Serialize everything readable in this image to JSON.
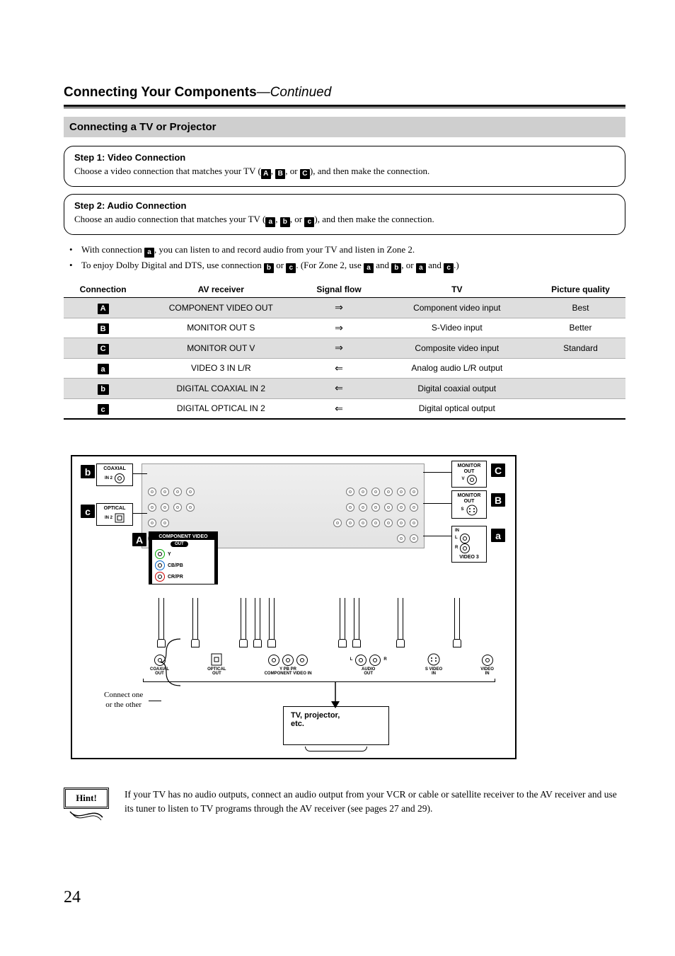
{
  "page": {
    "title_main": "Connecting Your Components",
    "title_cont": "—Continued",
    "number": "24"
  },
  "section": {
    "heading": "Connecting a TV or Projector"
  },
  "step1": {
    "heading": "Step 1: Video Connection",
    "text_pre": "Choose a video connection that matches your TV (",
    "chips": [
      "A",
      "B",
      "C"
    ],
    "sep": ", ",
    "sep_or": ", or ",
    "text_post": "), and then make the connection."
  },
  "step2": {
    "heading": "Step 2: Audio Connection",
    "text_pre": "Choose an audio connection that matches your TV (",
    "chips": [
      "a",
      "b",
      "c"
    ],
    "sep": ", ",
    "sep_or": ", or ",
    "text_post": "), and then make the connection."
  },
  "notes": {
    "n1_pre": "With connection ",
    "n1_chip": "a",
    "n1_post": ", you can listen to and record audio from your TV and listen in Zone 2.",
    "n2_pre": "To enjoy Dolby Digital and DTS, use connection ",
    "n2_chip1": "b",
    "n2_or": " or ",
    "n2_chip2": "c",
    "n2_mid": ". (For Zone 2, use ",
    "n2_chip3": "a",
    "n2_and": " and ",
    "n2_chip4": "b",
    "n2_or2": ", or ",
    "n2_chip5": "a",
    "n2_and2": " and ",
    "n2_chip6": "c",
    "n2_end": ".)"
  },
  "table": {
    "columns": [
      "Connection",
      "AV receiver",
      "Signal flow",
      "TV",
      "Picture quality"
    ],
    "col_widths": [
      "14%",
      "28%",
      "14%",
      "28%",
      "16%"
    ],
    "rows": [
      {
        "chip": "A",
        "av": "COMPONENT VIDEO OUT",
        "flow": "⇒",
        "tv": "Component video input",
        "pq": "Best",
        "shade": true
      },
      {
        "chip": "B",
        "av": "MONITOR OUT S",
        "flow": "⇒",
        "tv": "S-Video input",
        "pq": "Better",
        "shade": false
      },
      {
        "chip": "C",
        "av": "MONITOR OUT V",
        "flow": "⇒",
        "tv": "Composite video input",
        "pq": "Standard",
        "shade": true
      },
      {
        "chip": "a",
        "av": "VIDEO 3 IN L/R",
        "flow": "⇐",
        "tv": "Analog audio L/R output",
        "pq": "",
        "shade": false
      },
      {
        "chip": "b",
        "av": "DIGITAL COAXIAL IN 2",
        "flow": "⇐",
        "tv": "Digital coaxial output",
        "pq": "",
        "shade": true
      },
      {
        "chip": "c",
        "av": "DIGITAL OPTICAL IN 2",
        "flow": "⇐",
        "tv": "Digital optical output",
        "pq": "",
        "shade": false
      }
    ]
  },
  "diagram": {
    "chips": {
      "A": "A",
      "B": "B",
      "C": "C",
      "a": "a",
      "b": "b",
      "c": "c"
    },
    "callouts": {
      "coaxial": {
        "title": "COAXIAL",
        "sub": "IN 2"
      },
      "optical": {
        "title": "OPTICAL",
        "sub": "IN 2"
      },
      "component_out": {
        "title": "COMPONENT VIDEO",
        "sub": "OUT",
        "y": "Y",
        "pb": "CB/PB",
        "pr": "CR/PR"
      },
      "monitor_v": {
        "title": "MONITOR\nOUT",
        "sub": "V"
      },
      "monitor_s": {
        "title": "MONITOR\nOUT",
        "sub": "S"
      },
      "video3": {
        "title": "VIDEO 3",
        "in": "IN",
        "l": "L",
        "r": "R"
      }
    },
    "tv_ports": [
      {
        "label": "COAXIAL\nOUT"
      },
      {
        "label": "OPTICAL\nOUT"
      },
      {
        "label": "Y    PB    PR\nCOMPONENT VIDEO IN",
        "triple": true
      },
      {
        "label": "AUDIO\nOUT",
        "double": true,
        "l": "L",
        "r": "R"
      },
      {
        "label": "S VIDEO\nIN"
      },
      {
        "label": "VIDEO\nIN"
      }
    ],
    "connect_note_l1": "Connect one",
    "connect_note_l2": "or the other",
    "tv_box_l1": "TV, projector,",
    "tv_box_l2": "etc."
  },
  "hint": {
    "label": "Hint!",
    "text": "If your TV has no audio outputs, connect an audio output from your VCR or cable or satellite receiver to the AV receiver and use its tuner to listen to TV programs through the AV receiver (see pages 27 and 29)."
  },
  "colors": {
    "section_bg": "#cfcfcf",
    "table_shade": "#dedede",
    "panel_bg": "#e8e8e8"
  }
}
